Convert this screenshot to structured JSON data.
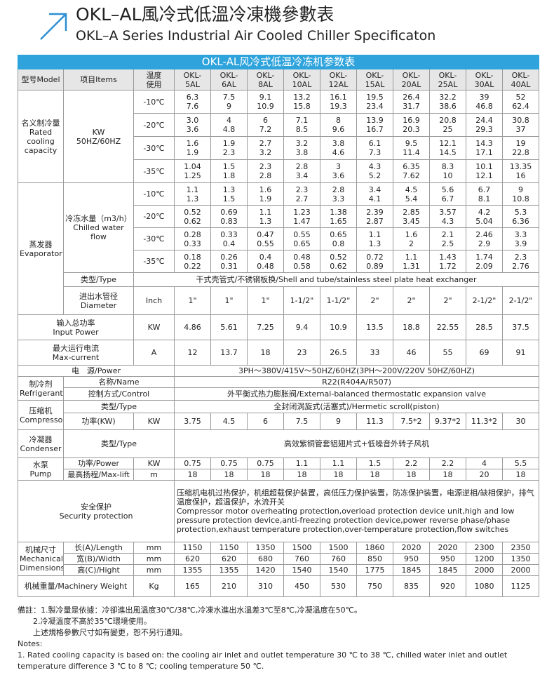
{
  "header": {
    "title": "OKL–AL風冷式低溫冷凍機參數表",
    "subtitle": "OKL–A Series Industrial Air Cooled Chiller Specificaton"
  },
  "table": {
    "caption": "OKL-AL风冷式低温冷冻机参数表",
    "head": {
      "model": "型号Model",
      "items": "项目Items",
      "temp": "温度\n使用",
      "models": [
        "OKL-\n5AL",
        "OKL-\n6AL",
        "OKL-\n8AL",
        "OKL-\n10AL",
        "OKL-\n12AL",
        "OKL-\n15AL",
        "OKL-\n20AL",
        "OKL-\n25AL",
        "OKL-\n30AL",
        "OKL-\n40AL"
      ]
    },
    "cooling": {
      "label": "名义制冷量\nRated\ncooling\ncapacity",
      "unit": "KW\n50HZ/60HZ",
      "rows": [
        {
          "temp": "-10℃",
          "values": [
            [
              "6.3",
              "7.6"
            ],
            [
              "7.5",
              "9"
            ],
            [
              "9.1",
              "10.9"
            ],
            [
              "13.2",
              "15.8"
            ],
            [
              "16.1",
              "19.3"
            ],
            [
              "19.5",
              "23.4"
            ],
            [
              "26.4",
              "31.7"
            ],
            [
              "32.2",
              "38.6"
            ],
            [
              "39",
              "46.8"
            ],
            [
              "52",
              "62.4"
            ]
          ]
        },
        {
          "temp": "-20℃",
          "values": [
            [
              "3.0",
              "3.6"
            ],
            [
              "4",
              "4.8"
            ],
            [
              "6",
              "7.2"
            ],
            [
              "7.1",
              "8.5"
            ],
            [
              "8",
              "9.6"
            ],
            [
              "13.9",
              "16.7"
            ],
            [
              "16.9",
              "20.3"
            ],
            [
              "20.8",
              "25"
            ],
            [
              "24.4",
              "29.3"
            ],
            [
              "30.8",
              "37"
            ]
          ]
        },
        {
          "temp": "-30℃",
          "values": [
            [
              "1.6",
              "1.9"
            ],
            [
              "1.9",
              "2.3"
            ],
            [
              "2.7",
              "3.2"
            ],
            [
              "3.2",
              "3.8"
            ],
            [
              "3.8",
              "4.6"
            ],
            [
              "6.1",
              "7.3"
            ],
            [
              "9.5",
              "11.4"
            ],
            [
              "12.1",
              "14.5"
            ],
            [
              "14.3",
              "17.1"
            ],
            [
              "19",
              "22.8"
            ]
          ]
        },
        {
          "temp": "-35℃",
          "values": [
            [
              "1.04",
              "1.25"
            ],
            [
              "1.5",
              "1.8"
            ],
            [
              "2.3",
              "2.8"
            ],
            [
              "2.8",
              "3.4"
            ],
            [
              "3",
              "3.6"
            ],
            [
              "4.3",
              "5.2"
            ],
            [
              "6.35",
              "7.62"
            ],
            [
              "8.3",
              "10"
            ],
            [
              "10.1",
              "12.1"
            ],
            [
              "13.35",
              "16"
            ]
          ]
        }
      ]
    },
    "evaporator": {
      "label": "蒸发器\nEvaporator",
      "flow_label": "冷冻水量（m3/h）\nChilled water flow",
      "flow_rows": [
        {
          "temp": "-10℃",
          "values": [
            [
              "1.1",
              "1.3"
            ],
            [
              "1.3",
              "1.5"
            ],
            [
              "1.6",
              "1.9"
            ],
            [
              "2.3",
              "2.7"
            ],
            [
              "2.8",
              "3.3"
            ],
            [
              "3.4",
              "4.1"
            ],
            [
              "4.5",
              "5.4"
            ],
            [
              "5.6",
              "6.7"
            ],
            [
              "6.7",
              "8.1"
            ],
            [
              "9",
              "10.8"
            ]
          ]
        },
        {
          "temp": "-20℃",
          "values": [
            [
              "0.52",
              "0.62"
            ],
            [
              "0.69",
              "0.83"
            ],
            [
              "1.1",
              "1.3"
            ],
            [
              "1.23",
              "1.47"
            ],
            [
              "1.38",
              "1.65"
            ],
            [
              "2.39",
              "2.87"
            ],
            [
              "2.85",
              "3.45"
            ],
            [
              "3.57",
              "4.3"
            ],
            [
              "4.2",
              "5.04"
            ],
            [
              "5.3",
              "6.36"
            ]
          ]
        },
        {
          "temp": "-30℃",
          "values": [
            [
              "0.28",
              "0.33"
            ],
            [
              "0.33",
              "0.4"
            ],
            [
              "0.47",
              "0.55"
            ],
            [
              "0.55",
              "0.65"
            ],
            [
              "0.65",
              "0.8"
            ],
            [
              "1.1",
              "1.3"
            ],
            [
              "1.6",
              "2"
            ],
            [
              "2.1",
              "2.5"
            ],
            [
              "2.46",
              "2.9"
            ],
            [
              "3.3",
              "3.9"
            ]
          ]
        },
        {
          "temp": "-35℃",
          "values": [
            [
              "0.18",
              "0.22"
            ],
            [
              "0.26",
              "0.31"
            ],
            [
              "0.4",
              "0.48"
            ],
            [
              "0.48",
              "0.58"
            ],
            [
              "0.52",
              "0.62"
            ],
            [
              "0.72",
              "0.89"
            ],
            [
              "1.1",
              "1.31"
            ],
            [
              "1.43",
              "1.72"
            ],
            [
              "1.74",
              "2.09"
            ],
            [
              "2.3",
              "2.76"
            ]
          ]
        }
      ],
      "type_label": "类型/Type",
      "type": "干式壳管式/不锈钢板换/Shell and tube/stainless steel plate heat exchanger",
      "diameter_label": "进出水管径\nDiameter",
      "diameter_unit": "Inch",
      "diameter": [
        "1\"",
        "1\"",
        "1\"",
        "1-1/2\"",
        "1-1/2\"",
        "2\"",
        "2\"",
        "2\"",
        "2-1/2\"",
        "2-1/2\""
      ]
    },
    "input_power": {
      "label": "输入总功率\nInput Power",
      "unit": "KW",
      "values": [
        "4.86",
        "5.61",
        "7.25",
        "9.4",
        "10.9",
        "13.5",
        "18.8",
        "22.55",
        "28.5",
        "37.5"
      ]
    },
    "max_current": {
      "label": "最大运行电流\nMax-current",
      "unit": "A",
      "values": [
        "12",
        "13.7",
        "18",
        "23",
        "26.5",
        "33",
        "46",
        "55",
        "69",
        "91"
      ]
    },
    "power_supply": {
      "label": "电　源/Power",
      "value": "3PH～380V/415V～50HZ/60HZ(3PH～200V/220V  50HZ/60HZ)"
    },
    "refrigerant": {
      "label": "制冷剂\nRefrigerant",
      "name_label": "名称/Name",
      "name": "R22(R404A/R507)",
      "control_label": "控制方式/Control",
      "control": "外平衡式热力膨胀阀/External-balanced thermostatic expansion valve"
    },
    "compressor": {
      "label": "压缩机\nCompressor",
      "type_label": "类型/Type",
      "type": "全封闭涡旋式(活塞式)/Hermetic scroll(piston)",
      "power_label": "功率(KW)",
      "power_unit": "KW",
      "power": [
        "3.75",
        "4.5",
        "6",
        "7.5",
        "9",
        "11.3",
        "7.5*2",
        "9.37*2",
        "11.3*2",
        "30"
      ]
    },
    "condenser": {
      "label": "冷凝器\nCondenser",
      "type_label": "类型/Type",
      "type": "高效紫铜管套铝翅片式+低噪音外转子风机"
    },
    "pump": {
      "label": "水泵\nPump",
      "power_label": "功率/Power",
      "power_unit": "KW",
      "power": [
        "0.75",
        "0.75",
        "0.75",
        "1.1",
        "1.1",
        "1.5",
        "2.2",
        "2.2",
        "4",
        "5.5"
      ],
      "lift_label": "最高扬程/Max-lift",
      "lift_unit": "m",
      "lift": [
        "18",
        "18",
        "18",
        "18",
        "18",
        "18",
        "18",
        "18",
        "20",
        "18"
      ]
    },
    "safety": {
      "label": "安全保护\nSecurity protection",
      "text": [
        "压缩机电机过热保护，机组超载保护装置，高低压力保护装置，防冻保护装置，电源逆相/缺相保护，排气温度保护，超温保护，水流开关",
        "Compressor motor overheating protection,overload protection device unit,high and low pressure protection device,anti-freezing protection device,power reverse phase/phase protection,exhaust temperature protection,over-temperature protection,flow switches"
      ]
    },
    "dimensions": {
      "label": "机械尺寸\nMechanical\nDimensions",
      "rows": [
        {
          "label": "长(A)/Length",
          "unit": "mm",
          "values": [
            "1150",
            "1150",
            "1350",
            "1500",
            "1500",
            "1860",
            "2020",
            "2020",
            "2300",
            "2350"
          ]
        },
        {
          "label": "宽(B)/Width",
          "unit": "mm",
          "values": [
            "620",
            "620",
            "680",
            "760",
            "760",
            "850",
            "950",
            "950",
            "1200",
            "1350"
          ]
        },
        {
          "label": "高(C)/Hight",
          "unit": "mm",
          "values": [
            "1355",
            "1355",
            "1420",
            "1540",
            "1540",
            "1775",
            "1845",
            "1845",
            "2000",
            "2000"
          ]
        }
      ]
    },
    "weight": {
      "label": "机械重量/Machinery Weight",
      "unit": "Kg",
      "values": [
        "165",
        "210",
        "310",
        "450",
        "530",
        "750",
        "835",
        "920",
        "1080",
        "1125"
      ]
    }
  },
  "notes": {
    "lines": [
      "備註：1.製冷量是依據：冷卻進出風溫度30℃/38℃,冷凍水進出水溫差3℃至8℃,冷凝溫度在50℃。",
      "2.冷凝溫度不高於35℃環境使用。",
      "上述規格參數尺寸如有變更，恕不另行通知。",
      "Notes:",
      "1. Rated cooling capacity is based on: the cooling air inlet and outlet temperature 30 ℃ to 38 ℃, chilled water inlet and outlet temperature difference 3 ℃ to 8 ℃; cooling temperature 50 ℃."
    ]
  }
}
